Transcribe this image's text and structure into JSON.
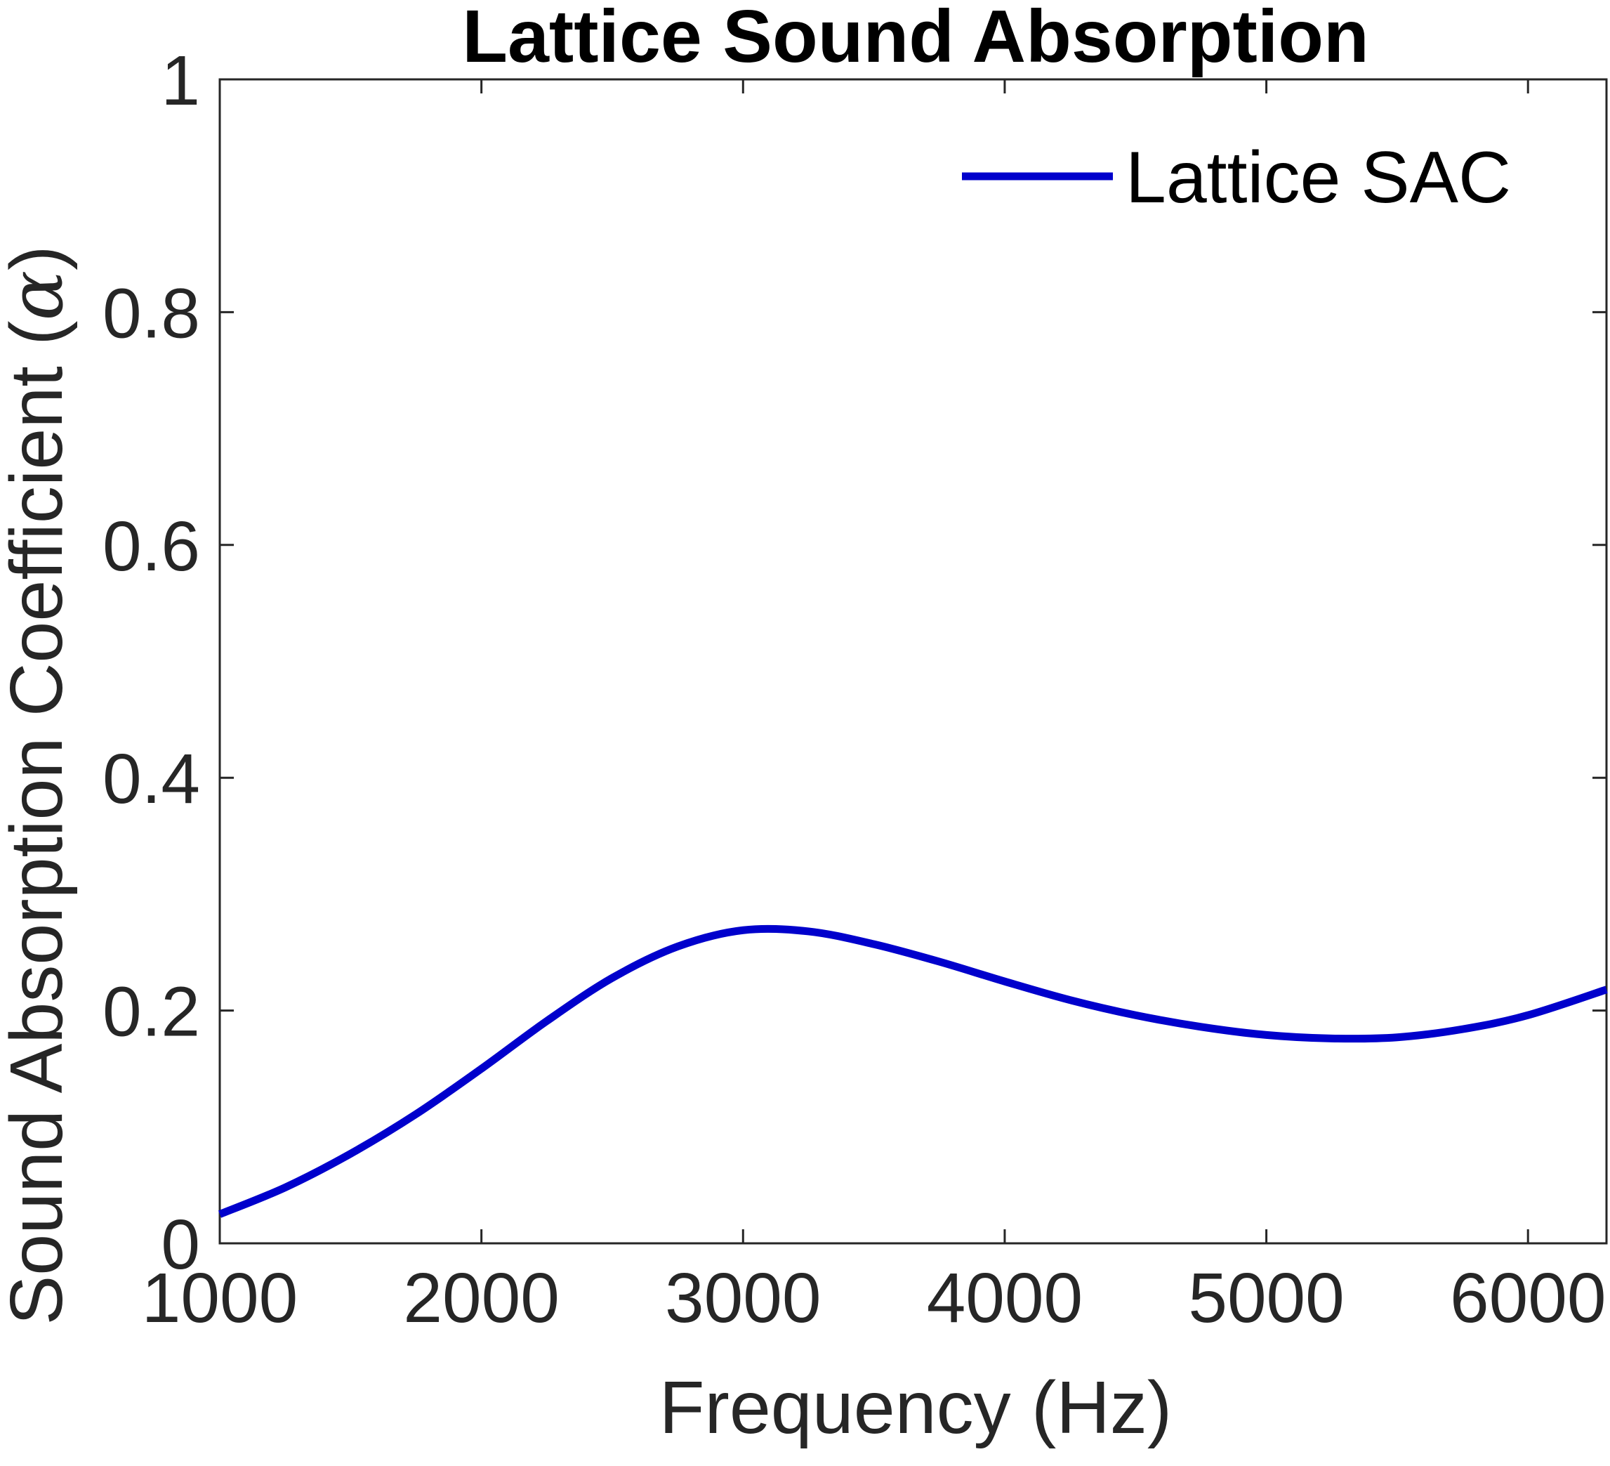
{
  "chart_data": {
    "type": "line",
    "title": "Lattice Sound Absorption",
    "xlabel": "Frequency (Hz)",
    "ylabel_prefix": "Sound Absorption Coefficient (",
    "ylabel_symbol": "α",
    "ylabel_suffix": ")",
    "xlim": [
      1000,
      6300
    ],
    "ylim": [
      0,
      1
    ],
    "x_ticks": [
      1000,
      2000,
      3000,
      4000,
      5000,
      6000
    ],
    "x_tick_labels": [
      "1000",
      "2000",
      "3000",
      "4000",
      "5000",
      "6000"
    ],
    "y_ticks": [
      0,
      0.2,
      0.4,
      0.6,
      0.8,
      1
    ],
    "y_tick_labels": [
      "0",
      "0.2",
      "0.4",
      "0.6",
      "0.8",
      "1"
    ],
    "grid": false,
    "legend_position": "top-right",
    "series": [
      {
        "name": "Lattice SAC",
        "color": "#0000CC",
        "x": [
          1000,
          1250,
          1500,
          1750,
          2000,
          2250,
          2500,
          2750,
          3000,
          3250,
          3500,
          3750,
          4000,
          4250,
          4500,
          4750,
          5000,
          5250,
          5500,
          5750,
          6000,
          6300
        ],
        "y": [
          0.025,
          0.048,
          0.077,
          0.111,
          0.15,
          0.191,
          0.228,
          0.255,
          0.269,
          0.268,
          0.257,
          0.242,
          0.225,
          0.209,
          0.196,
          0.186,
          0.179,
          0.176,
          0.177,
          0.184,
          0.196,
          0.218
        ]
      }
    ]
  }
}
